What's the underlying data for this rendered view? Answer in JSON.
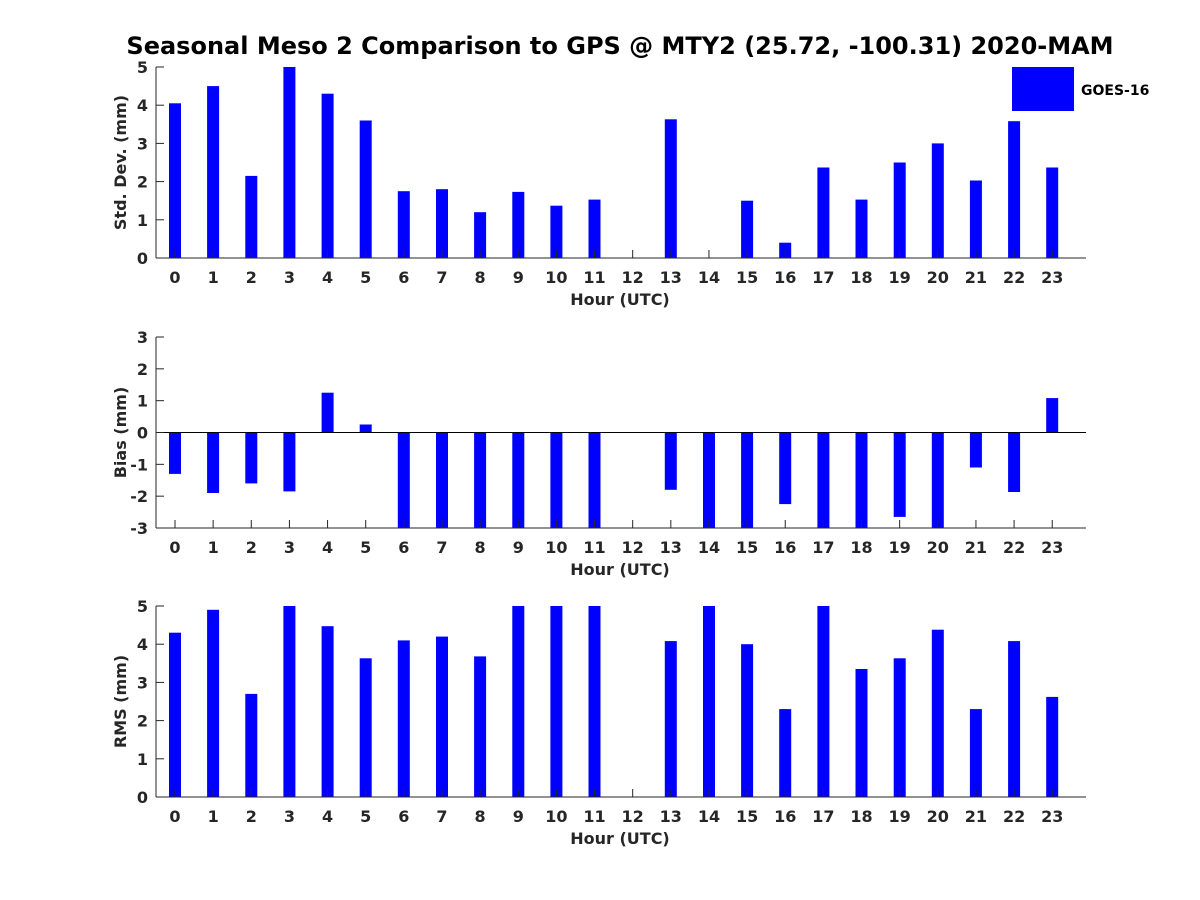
{
  "title": "Seasonal Meso 2 Comparison to GPS @ MTY2 (25.72, -100.31) 2020-MAM",
  "legend": {
    "label": "GOES-16",
    "color": "#0000ff",
    "placement": "top-right"
  },
  "chart_data": [
    {
      "type": "bar",
      "name": "std-dev",
      "ylabel": "Std. Dev. (mm)",
      "xlabel": "Hour (UTC)",
      "ylim": [
        0,
        5
      ],
      "yticks": [
        0,
        1,
        2,
        3,
        4,
        5
      ],
      "categories": [
        "0",
        "1",
        "2",
        "3",
        "4",
        "5",
        "6",
        "7",
        "8",
        "9",
        "10",
        "11",
        "12",
        "13",
        "14",
        "15",
        "16",
        "17",
        "18",
        "19",
        "20",
        "21",
        "22",
        "23"
      ],
      "series": [
        {
          "name": "GOES-16",
          "color": "#0000ff",
          "values": [
            4.05,
            4.5,
            2.15,
            5.0,
            4.3,
            3.6,
            1.75,
            1.8,
            1.2,
            1.73,
            1.37,
            1.53,
            null,
            3.63,
            null,
            1.5,
            0.4,
            2.37,
            1.53,
            2.5,
            3.0,
            2.03,
            3.58,
            2.37
          ]
        }
      ]
    },
    {
      "type": "bar",
      "name": "bias",
      "ylabel": "Bias (mm)",
      "xlabel": "Hour (UTC)",
      "ylim": [
        -3,
        3
      ],
      "yticks": [
        -3,
        -2,
        -1,
        0,
        1,
        2,
        3
      ],
      "categories": [
        "0",
        "1",
        "2",
        "3",
        "4",
        "5",
        "6",
        "7",
        "8",
        "9",
        "10",
        "11",
        "12",
        "13",
        "14",
        "15",
        "16",
        "17",
        "18",
        "19",
        "20",
        "21",
        "22",
        "23"
      ],
      "series": [
        {
          "name": "GOES-16",
          "color": "#0000ff",
          "values": [
            -1.3,
            -1.9,
            -1.6,
            -1.85,
            1.25,
            0.25,
            -3.0,
            -3.0,
            -3.0,
            -3.0,
            -3.0,
            -3.0,
            null,
            -1.8,
            -3.0,
            -3.0,
            -2.25,
            -3.0,
            -3.0,
            -2.65,
            -3.0,
            -1.1,
            -1.87,
            1.08
          ]
        }
      ]
    },
    {
      "type": "bar",
      "name": "rms",
      "ylabel": "RMS (mm)",
      "xlabel": "Hour (UTC)",
      "ylim": [
        0,
        5
      ],
      "yticks": [
        0,
        1,
        2,
        3,
        4,
        5
      ],
      "categories": [
        "0",
        "1",
        "2",
        "3",
        "4",
        "5",
        "6",
        "7",
        "8",
        "9",
        "10",
        "11",
        "12",
        "13",
        "14",
        "15",
        "16",
        "17",
        "18",
        "19",
        "20",
        "21",
        "22",
        "23"
      ],
      "series": [
        {
          "name": "GOES-16",
          "color": "#0000ff",
          "values": [
            4.3,
            4.9,
            2.7,
            5.0,
            4.47,
            3.63,
            4.1,
            4.2,
            3.68,
            5.0,
            5.0,
            5.0,
            null,
            4.08,
            5.0,
            4.0,
            2.3,
            5.0,
            3.35,
            3.63,
            4.38,
            2.3,
            4.08,
            2.62
          ]
        }
      ]
    }
  ]
}
